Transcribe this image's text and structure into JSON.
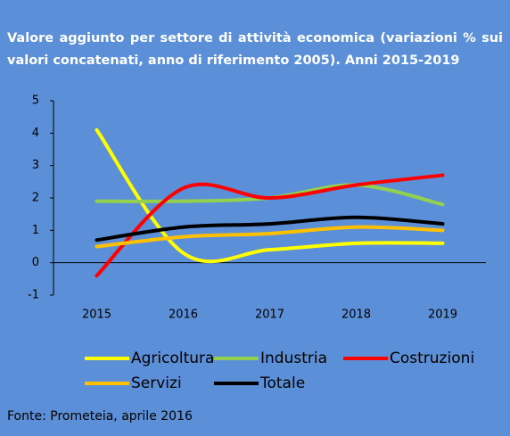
{
  "chart_data": {
    "type": "line",
    "smooth": true,
    "title": "Valore aggiunto per settore di attività economica (variazioni % sui valori concatenati, anno di riferimento 2005). Anni 2015-2019",
    "categories": [
      "2015",
      "2016",
      "2017",
      "2018",
      "2019"
    ],
    "series": [
      {
        "name": "Agricoltura",
        "color": "#ffff00",
        "values": [
          4.1,
          0.3,
          0.4,
          0.6,
          0.6
        ]
      },
      {
        "name": "Industria",
        "color": "#92d050",
        "values": [
          1.9,
          1.9,
          2.0,
          2.4,
          1.8
        ]
      },
      {
        "name": "Costruzioni",
        "color": "#ff0000",
        "values": [
          -0.4,
          2.3,
          2.0,
          2.4,
          2.7
        ]
      },
      {
        "name": "Servizi",
        "color": "#ffc000",
        "values": [
          0.5,
          0.8,
          0.9,
          1.1,
          1.0
        ]
      },
      {
        "name": "Totale",
        "color": "#000000",
        "values": [
          0.7,
          1.1,
          1.2,
          1.4,
          1.2
        ]
      }
    ],
    "ylim": [
      -1,
      5
    ],
    "yticks": [
      -1,
      0,
      1,
      2,
      3,
      4,
      5
    ],
    "grid": false,
    "legend": "bottom",
    "source": "Fonte: Prometeia, aprile 2016"
  }
}
